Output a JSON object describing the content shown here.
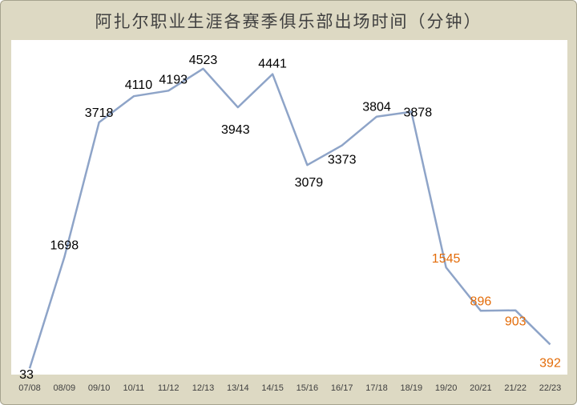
{
  "chart_data": {
    "type": "line",
    "title": "阿扎尔职业生涯各赛季俱乐部出场时间（分钟）",
    "categories": [
      "07/08",
      "08/09",
      "09/10",
      "10/11",
      "11/12",
      "12/13",
      "13/14",
      "14/15",
      "15/16",
      "16/17",
      "17/18",
      "18/19",
      "19/20",
      "20/21",
      "21/22",
      "22/23"
    ],
    "series": [
      {
        "values": [
          33,
          1698,
          3718,
          4110,
          4193,
          4523,
          3943,
          4441,
          3079,
          3373,
          3804,
          3878,
          1545,
          896,
          903,
          392
        ],
        "data_labels": [
          "33",
          "1698",
          "3718",
          "4110",
          "4193",
          "4523",
          "3943",
          "4441",
          "3079",
          "3373",
          "3804",
          "3878",
          "1545",
          "896",
          "903",
          "392"
        ]
      }
    ],
    "ylim": [
      0,
      4700
    ],
    "grid": false,
    "legend": "none",
    "colors": {
      "line": "#8ea4c8",
      "label_default": "#000000",
      "label_highlight": "#e36c09",
      "background": "#ddd9c3",
      "plot_background": "#ffffff"
    },
    "highlight_from_index": 12
  }
}
